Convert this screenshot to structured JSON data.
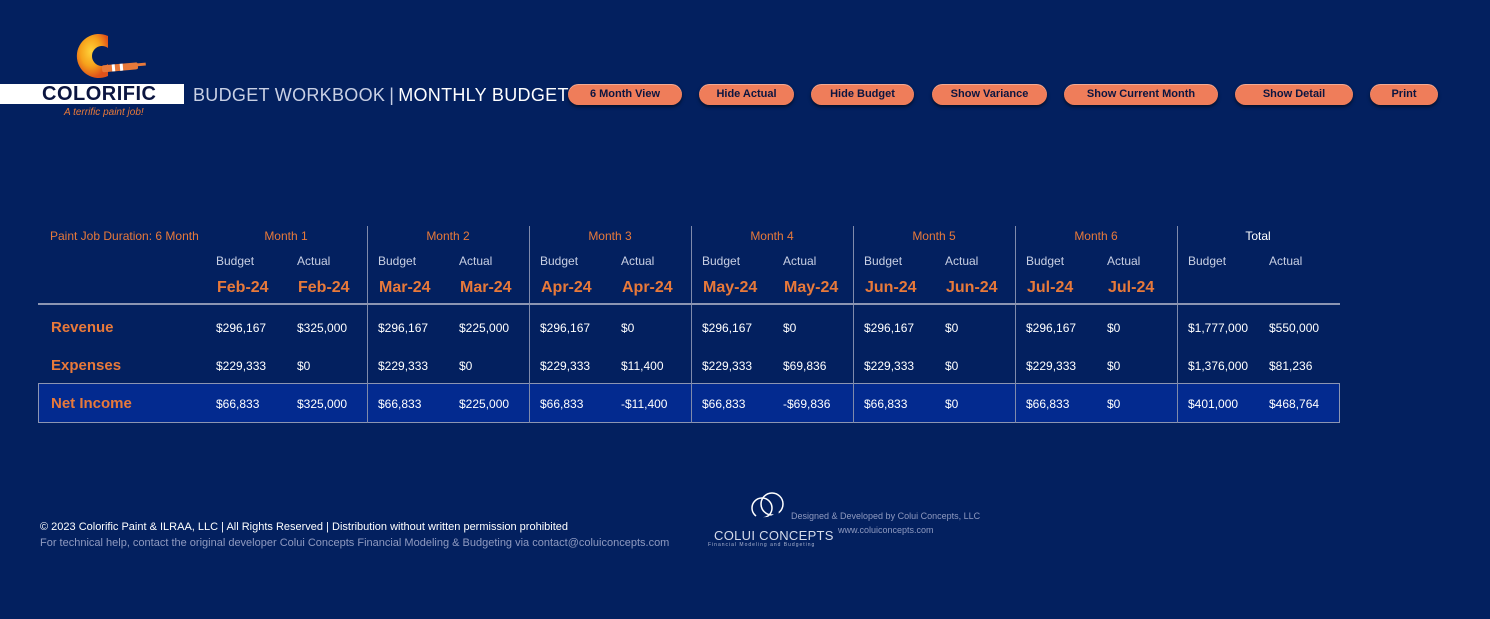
{
  "brand": {
    "name": "COLORIFIC",
    "tagline": "A terrific paint job!",
    "accent_color": "#e8793a",
    "background_color": "#03205f"
  },
  "header": {
    "workbook": "BUDGET WORKBOOK",
    "separator": "|",
    "page": "MONTHLY BUDGET"
  },
  "toolbar": [
    {
      "label": "6 Month View"
    },
    {
      "label": "Hide Actual"
    },
    {
      "label": "Hide Budget"
    },
    {
      "label": "Show Variance"
    },
    {
      "label": "Show Current Month"
    },
    {
      "label": "Show Detail"
    },
    {
      "label": "Print"
    }
  ],
  "table": {
    "duration_label": "Paint Job Duration: 6 Month",
    "groups": [
      {
        "title": "Month 1",
        "budget_label": "Budget",
        "actual_label": "Actual",
        "budget_date": "Feb-24",
        "actual_date": "Feb-24"
      },
      {
        "title": "Month 2",
        "budget_label": "Budget",
        "actual_label": "Actual",
        "budget_date": "Mar-24",
        "actual_date": "Mar-24"
      },
      {
        "title": "Month 3",
        "budget_label": "Budget",
        "actual_label": "Actual",
        "budget_date": "Apr-24",
        "actual_date": "Apr-24"
      },
      {
        "title": "Month 4",
        "budget_label": "Budget",
        "actual_label": "Actual",
        "budget_date": "May-24",
        "actual_date": "May-24"
      },
      {
        "title": "Month 5",
        "budget_label": "Budget",
        "actual_label": "Actual",
        "budget_date": "Jun-24",
        "actual_date": "Jun-24"
      },
      {
        "title": "Month 6",
        "budget_label": "Budget",
        "actual_label": "Actual",
        "budget_date": "Jul-24",
        "actual_date": "Jul-24"
      },
      {
        "title": "Total",
        "budget_label": "Budget",
        "actual_label": "Actual",
        "budget_date": "",
        "actual_date": ""
      }
    ],
    "rows": [
      {
        "label": "Revenue",
        "values": [
          "$296,167",
          "$325,000",
          "$296,167",
          "$225,000",
          "$296,167",
          "$0",
          "$296,167",
          "$0",
          "$296,167",
          "$0",
          "$296,167",
          "$0",
          "$1,777,000",
          "$550,000"
        ]
      },
      {
        "label": "Expenses",
        "values": [
          "$229,333",
          "$0",
          "$229,333",
          "$0",
          "$229,333",
          "$11,400",
          "$229,333",
          "$69,836",
          "$229,333",
          "$0",
          "$229,333",
          "$0",
          "$1,376,000",
          "$81,236"
        ]
      },
      {
        "label": "Net Income",
        "values": [
          "$66,833",
          "$325,000",
          "$66,833",
          "$225,000",
          "$66,833",
          "-$11,400",
          "$66,833",
          "-$69,836",
          "$66,833",
          "$0",
          "$66,833",
          "$0",
          "$401,000",
          "$468,764"
        ]
      }
    ]
  },
  "footer": {
    "copyright": "© 2023 Colorific Paint & ILRAA, LLC | All Rights Reserved | Distribution without written permission prohibited",
    "help": "For technical help, contact the original developer  Colui Concepts Financial Modeling & Budgeting via contact@coluiconcepts.com",
    "developer_name": "COLUI CONCEPTS",
    "developer_sub": "Financial Modeling and Budgeting",
    "designed_by": "Designed & Developed by Colui Concepts, LLC",
    "website": "www.coluiconcepts.com"
  }
}
